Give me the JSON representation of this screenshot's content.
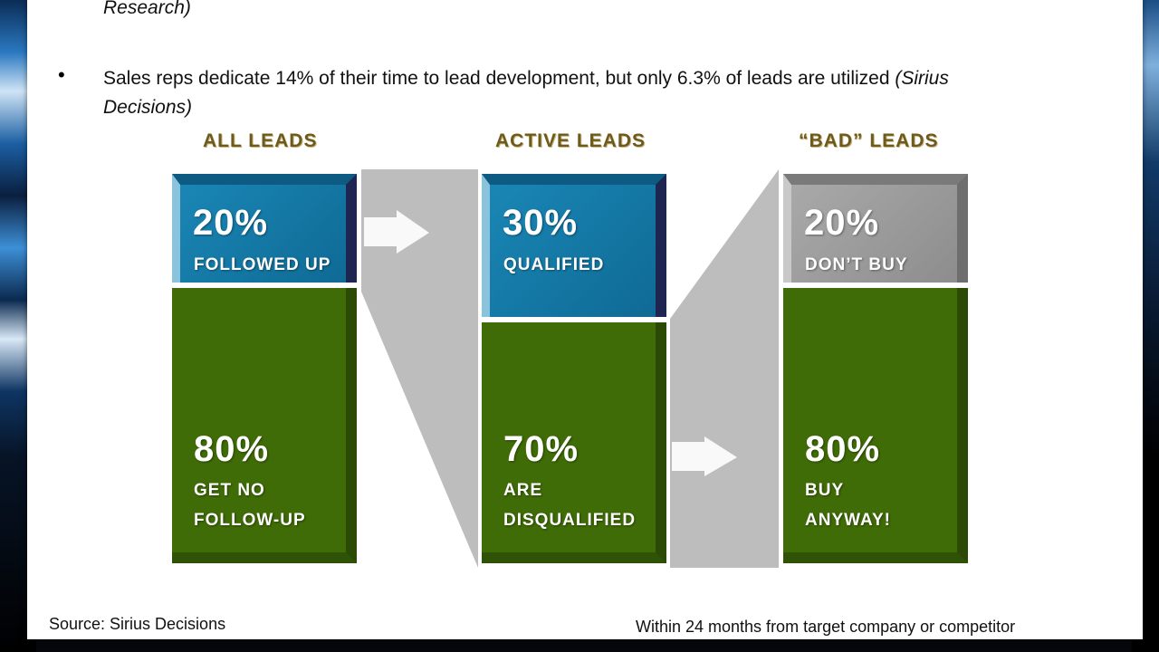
{
  "slide": {
    "prev_citation_tail": "Research)",
    "bullet_text": "Sales reps dedicate 14% of their time to lead development, but only 6.3% of leads are utilized ",
    "bullet_citation_1": "(Sirius",
    "bullet_citation_2": "Decisions)",
    "source": "Source: Sirius Decisions",
    "footnote": "Within 24 months from target company or competitor"
  },
  "infographic": {
    "columns": [
      {
        "header": "ALL LEADS",
        "top": {
          "pct": "20%",
          "label": [
            "FOLLOWED UP"
          ]
        },
        "bottom": {
          "pct": "80%",
          "label": [
            "GET NO",
            "FOLLOW-UP"
          ]
        }
      },
      {
        "header": "ACTIVE LEADS",
        "top": {
          "pct": "30%",
          "label": [
            "QUALIFIED"
          ]
        },
        "bottom": {
          "pct": "70%",
          "label": [
            "ARE",
            "DISQUALIFIED"
          ]
        }
      },
      {
        "header": "“BAD” LEADS",
        "top": {
          "pct": "20%",
          "label": [
            "DON’T BUY"
          ]
        },
        "bottom": {
          "pct": "80%",
          "label": [
            "BUY",
            "ANYWAY!"
          ]
        }
      }
    ],
    "colors": {
      "blue": "#0f6a95",
      "green": "#3f6c06",
      "gray": "#999999",
      "connector": "#bdbdbd",
      "header": "#6e5a1a"
    }
  }
}
